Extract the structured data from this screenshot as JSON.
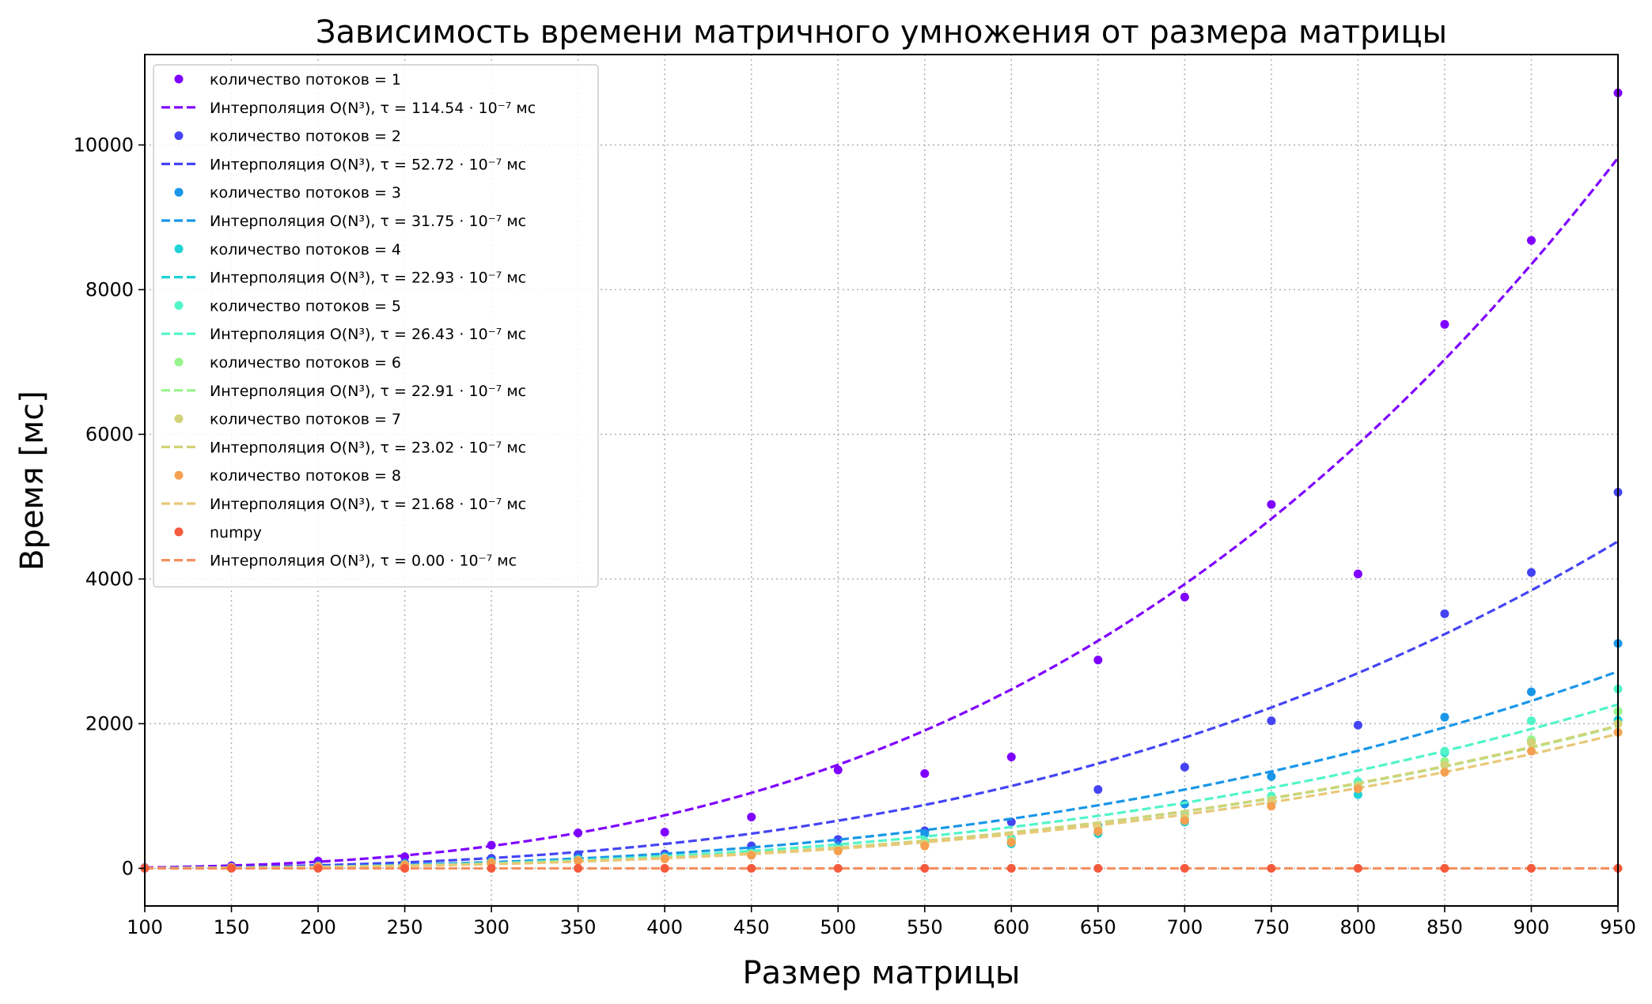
{
  "chart_data": {
    "type": "scatter",
    "title": "Зависимость времени матричного умножения от размера матрицы",
    "xlabel": "Размер матрицы",
    "ylabel": "Время [мс]",
    "xlim": [
      100,
      950
    ],
    "ylim": [
      -520,
      11250
    ],
    "xticks": [
      100,
      150,
      200,
      250,
      300,
      350,
      400,
      450,
      500,
      550,
      600,
      650,
      700,
      750,
      800,
      850,
      900,
      950
    ],
    "yticks": [
      0,
      2000,
      4000,
      6000,
      8000,
      10000
    ],
    "grid": true,
    "legend_position": "top-left",
    "x": [
      100,
      150,
      200,
      250,
      300,
      350,
      400,
      450,
      500,
      550,
      600,
      650,
      700,
      750,
      800,
      850,
      900,
      950
    ],
    "fit_model": "tau*N^3",
    "series": [
      {
        "name": "количество потоков = 1",
        "fit_label_prefix": "Интерполяция O(N³), τ = ",
        "fit_label_value": "114.54",
        "fit_label_suffix": " · 10⁻⁷ мс",
        "tau": 1.1454e-05,
        "color": "#7f00ff",
        "values": [
          10,
          35,
          100,
          160,
          320,
          490,
          500,
          710,
          1360,
          1310,
          1540,
          2880,
          3750,
          5030,
          4070,
          7520,
          8680,
          10720
        ]
      },
      {
        "name": "количество потоков = 2",
        "fit_label_prefix": "Интерполяция O(N³), τ = ",
        "fit_label_value": "52.72",
        "fit_label_suffix": " · 10⁻⁷ мс",
        "tau": 5.272e-06,
        "color": "#4444f5",
        "values": [
          5,
          20,
          50,
          80,
          140,
          190,
          200,
          310,
          400,
          520,
          640,
          1090,
          1400,
          2040,
          1980,
          3520,
          4090,
          5200
        ]
      },
      {
        "name": "количество потоков = 3",
        "fit_label_prefix": "Интерполяция O(N³), τ = ",
        "fit_label_value": "31.75",
        "fit_label_suffix": " · 10⁻⁷ мс",
        "tau": 3.175e-06,
        "color": "#1996e8",
        "values": [
          4,
          15,
          35,
          60,
          100,
          140,
          170,
          240,
          310,
          480,
          410,
          590,
          890,
          1270,
          1190,
          2090,
          2440,
          3110
        ]
      },
      {
        "name": "количество потоков = 4",
        "fit_label_prefix": "Интерполяция O(N³), τ = ",
        "fit_label_value": "22.93",
        "fit_label_suffix": " · 10⁻⁷ мс",
        "tau": 2.293e-06,
        "color": "#1ed2d6",
        "values": [
          3,
          12,
          28,
          50,
          80,
          110,
          140,
          200,
          250,
          330,
          340,
          480,
          640,
          900,
          1020,
          1600,
          1760,
          2050
        ]
      },
      {
        "name": "количество потоков = 5",
        "fit_label_prefix": "Интерполяция O(N³), τ = ",
        "fit_label_value": "26.43",
        "fit_label_suffix": " · 10⁻⁷ мс",
        "tau": 2.643e-06,
        "color": "#50f5c8",
        "values": [
          3,
          13,
          30,
          55,
          85,
          120,
          150,
          210,
          270,
          380,
          400,
          550,
          750,
          1000,
          1200,
          1620,
          2040,
          2480
        ]
      },
      {
        "name": "количество потоков = 6",
        "fit_label_prefix": "Интерполяция O(N³), τ = ",
        "fit_label_value": "22.91",
        "fit_label_suffix": " · 10⁻⁷ мс",
        "tau": 2.291e-06,
        "color": "#96f58c",
        "values": [
          3,
          12,
          28,
          50,
          80,
          110,
          140,
          190,
          250,
          340,
          380,
          560,
          700,
          950,
          1150,
          1480,
          1780,
          2170
        ]
      },
      {
        "name": "количество потоков = 7",
        "fit_label_prefix": "Интерполяция O(N³), τ = ",
        "fit_label_value": "23.02",
        "fit_label_suffix": " · 10⁻⁷ мс",
        "tau": 2.302e-06,
        "color": "#d2d278",
        "values": [
          3,
          12,
          28,
          50,
          80,
          110,
          140,
          190,
          250,
          330,
          370,
          540,
          680,
          920,
          1130,
          1430,
          1740,
          2000
        ]
      },
      {
        "name": "количество потоков = 8",
        "fit_label_prefix": "Интерполяция O(N³), τ = ",
        "fit_label_value": "21.68",
        "fit_label_suffix": " · 10⁻⁷ мс",
        "tau": 2.168e-06,
        "color": "#f5a050",
        "fit_color": "#e8c878",
        "values": [
          3,
          11,
          26,
          48,
          75,
          105,
          130,
          180,
          240,
          310,
          360,
          510,
          660,
          860,
          1100,
          1330,
          1620,
          1880
        ]
      },
      {
        "name": "numpy",
        "fit_label_prefix": "Интерполяция O(N³), τ = ",
        "fit_label_value": "0.00",
        "fit_label_suffix": " · 10⁻⁷ мс",
        "tau": 0,
        "color": "#f55a3c",
        "fit_color": "#f59060",
        "values": [
          0,
          0,
          0,
          0,
          0,
          0,
          0,
          0,
          0,
          0,
          0,
          0,
          0,
          0,
          0,
          0,
          0,
          0
        ]
      }
    ]
  }
}
